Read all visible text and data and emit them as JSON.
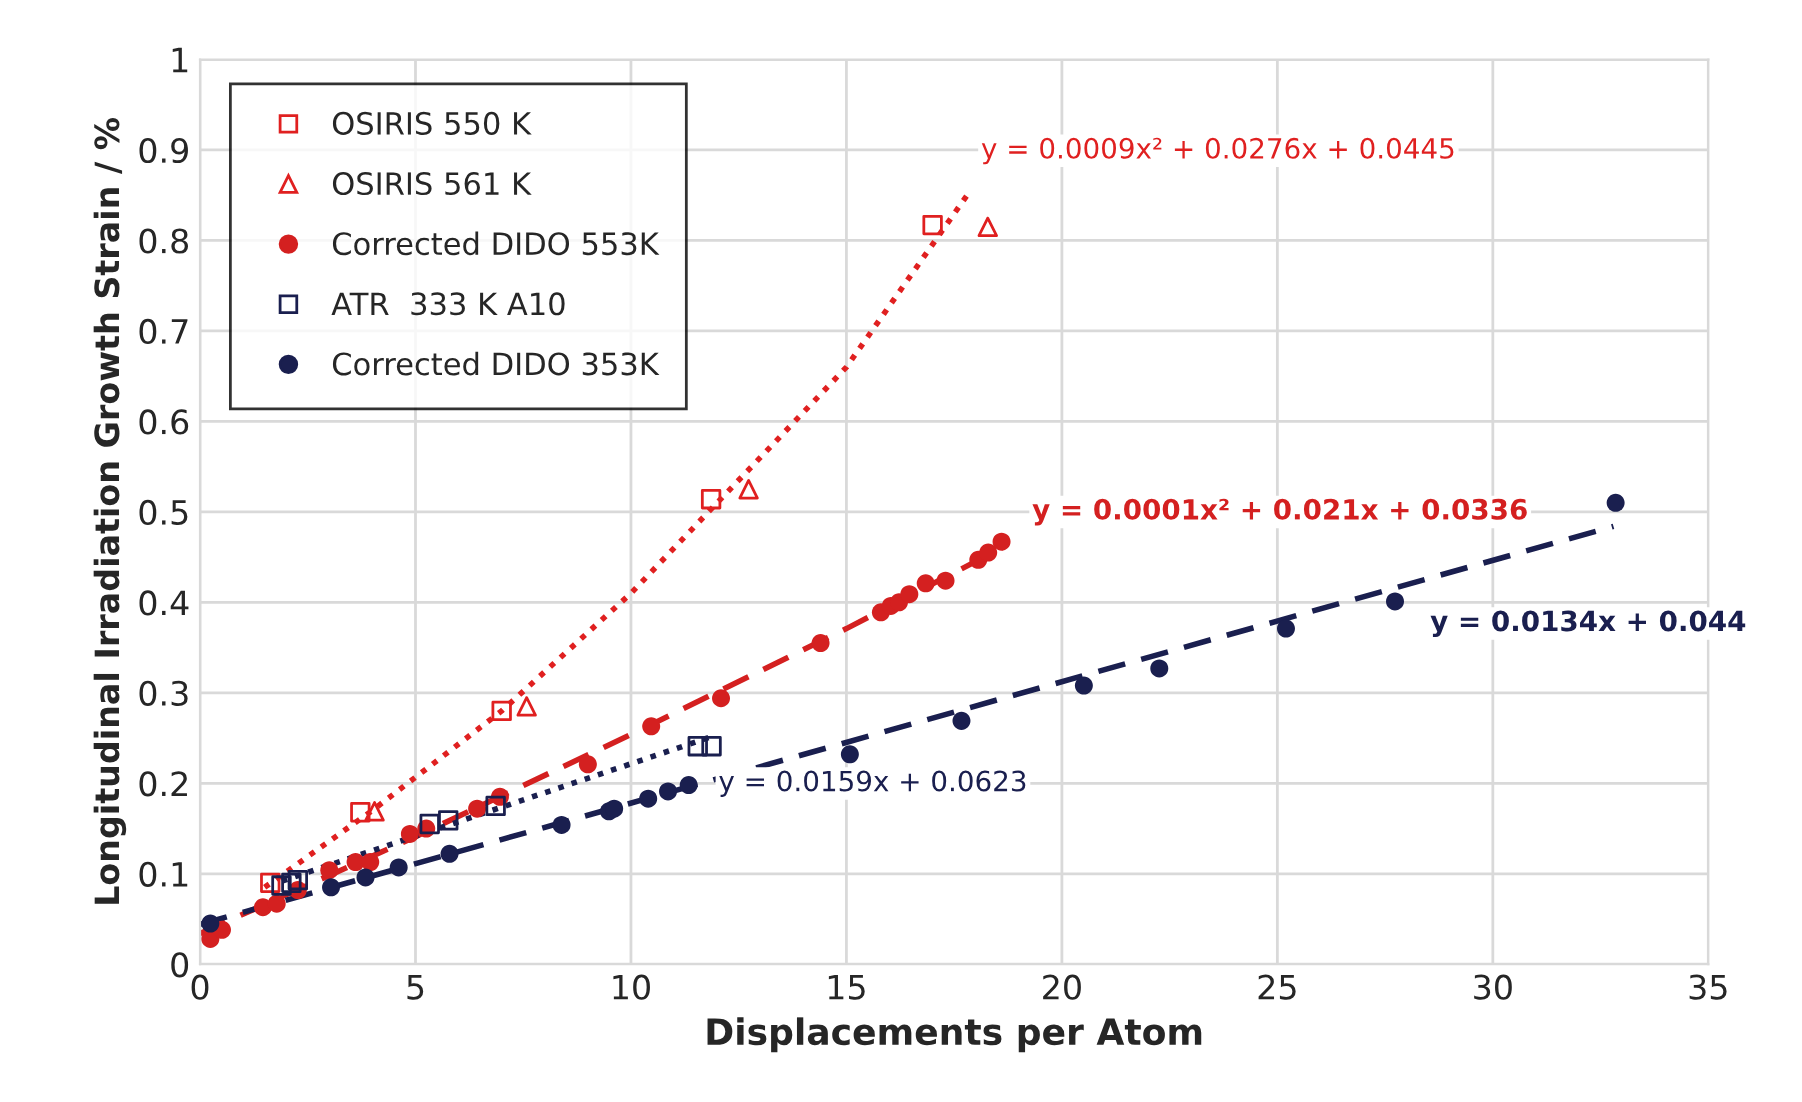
{
  "chart_data": {
    "type": "scatter",
    "xlabel": "Displacements per Atom",
    "ylabel": "Longitudinal Irradiation Growth Strain / %",
    "xlim": [
      0,
      35
    ],
    "ylim": [
      0,
      1
    ],
    "xticks": [
      0,
      5,
      10,
      15,
      20,
      25,
      30,
      35
    ],
    "yticks": [
      0,
      0.1,
      0.2,
      0.3,
      0.4,
      0.5,
      0.6,
      0.7,
      0.8,
      0.9,
      1
    ],
    "grid": true,
    "legend": "top left",
    "series": [
      {
        "name": "OSIRIS 550 K",
        "color": "#e02020",
        "marker": "square",
        "x": [
          1.63,
          3.72,
          7.0,
          11.86,
          17.0
        ],
        "values": [
          0.09,
          0.168,
          0.28,
          0.514,
          0.817
        ]
      },
      {
        "name": "OSIRIS 561 K",
        "color": "#e02020",
        "marker": "triangle",
        "x": [
          4.05,
          7.58,
          12.73,
          18.28
        ],
        "values": [
          0.169,
          0.285,
          0.525,
          0.815
        ]
      },
      {
        "name": "Corrected DIDO 553K",
        "color": "#d42020",
        "marker": "circle",
        "x": [
          0.24,
          0.51,
          1.46,
          1.78,
          2.27,
          3.0,
          3.61,
          3.95,
          4.87,
          5.25,
          6.43,
          6.96,
          9.0,
          10.47,
          12.09,
          14.4,
          15.8,
          16.03,
          16.22,
          16.46,
          16.84,
          17.3,
          18.06,
          18.29,
          18.6
        ],
        "values": [
          0.028,
          0.038,
          0.063,
          0.067,
          0.082,
          0.104,
          0.113,
          0.113,
          0.144,
          0.15,
          0.172,
          0.185,
          0.221,
          0.263,
          0.294,
          0.355,
          0.389,
          0.396,
          0.4,
          0.409,
          0.421,
          0.424,
          0.447,
          0.455,
          0.467
        ]
      },
      {
        "name": "ATR  333 K A10",
        "color": "#1a1f4f",
        "marker": "square",
        "x": [
          1.89,
          2.12,
          2.27,
          5.33,
          5.76,
          6.86,
          11.55,
          11.87
        ],
        "values": [
          0.087,
          0.09,
          0.093,
          0.155,
          0.159,
          0.175,
          0.241,
          0.241
        ]
      },
      {
        "name": "Corrected DIDO 353K",
        "color": "#1a1f4f",
        "marker": "circle",
        "x": [
          0.24,
          3.04,
          3.84,
          4.61,
          5.79,
          8.39,
          9.49,
          9.61,
          10.4,
          10.86,
          11.34,
          15.08,
          17.67,
          20.51,
          22.26,
          25.2,
          27.73,
          32.85
        ],
        "values": [
          0.045,
          0.085,
          0.096,
          0.107,
          0.122,
          0.154,
          0.169,
          0.172,
          0.183,
          0.191,
          0.198,
          0.232,
          0.269,
          0.308,
          0.327,
          0.371,
          0.401,
          0.51
        ]
      },
      {
        "type": "line",
        "color": "#e02020",
        "line_style": "dotted",
        "x": [
          1.5,
          4,
          7,
          10,
          12,
          15,
          17.8
        ],
        "values": [
          0.085,
          0.17,
          0.28,
          0.41,
          0.51,
          0.66,
          0.85
        ]
      },
      {
        "type": "line",
        "color": "#d42020",
        "line_style": "dashed",
        "x": [
          0,
          5,
          10,
          15,
          18.6
        ],
        "values": [
          0.034,
          0.141,
          0.254,
          0.371,
          0.46
        ]
      },
      {
        "type": "line",
        "color": "#1a1f4f",
        "line_style": "dotted",
        "x": [
          1.9,
          11.9
        ],
        "values": [
          0.092,
          0.252
        ]
      },
      {
        "type": "line",
        "color": "#1a1f4f",
        "line_style": "dashed",
        "x": [
          0,
          32.8
        ],
        "values": [
          0.044,
          0.484
        ]
      }
    ],
    "annotations": [
      "y = 0.0009x² + 0.0276x + 0.0445",
      "y = 0.0001x² + 0.021x + 0.0336",
      "y = 0.0159x + 0.0623",
      "y = 0.0134x + 0.044"
    ]
  }
}
